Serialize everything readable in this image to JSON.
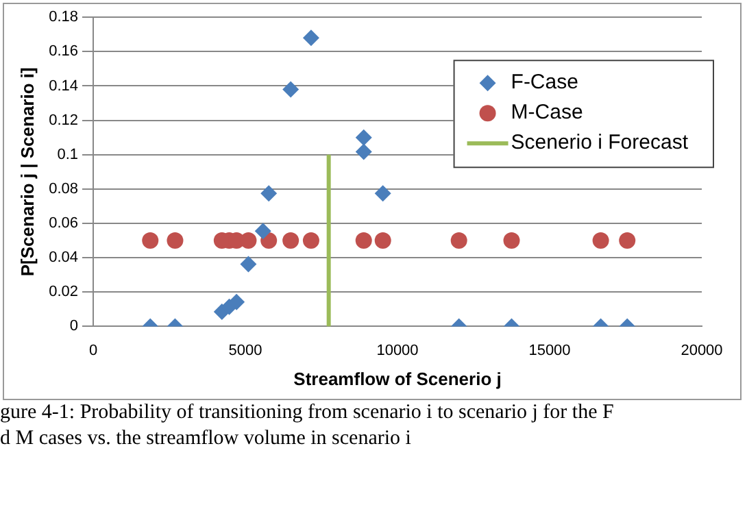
{
  "chart_data": {
    "type": "scatter",
    "xlabel": "Streamflow of Scenerio j",
    "ylabel": "P[Scenario j | Scenario i]",
    "x": [
      1875,
      2690,
      4230,
      4470,
      4710,
      5100,
      5580,
      5770,
      6490,
      7160,
      8890,
      8890,
      9520,
      12020,
      13750,
      16680,
      17550
    ],
    "series": [
      {
        "name": "F-Case",
        "color": "#4a7ebb",
        "marker": "diamond",
        "values": [
          0,
          0,
          0.0085,
          0.0114,
          0.0142,
          0.0363,
          0.0555,
          0.0775,
          0.138,
          0.168,
          0.1017,
          0.11,
          0.0775,
          0,
          0,
          0,
          0
        ]
      },
      {
        "name": "M-Case",
        "color": "#c0504d",
        "marker": "circle",
        "values": [
          0.05,
          0.05,
          0.05,
          0.05,
          0.05,
          0.05,
          null,
          0.05,
          0.05,
          0.05,
          0.05,
          null,
          0.05,
          0.05,
          0.05,
          0.05,
          0.05
        ]
      },
      {
        "name": "Scenerio i Forecast",
        "type": "line",
        "color": "#9bbb59",
        "marker": "none",
        "x": [
          7740,
          7740
        ],
        "values": [
          0,
          0.1
        ]
      }
    ],
    "xlim": [
      0,
      20000
    ],
    "xticks": [
      0,
      5000,
      10000,
      15000,
      20000
    ],
    "ylim": [
      0,
      0.18
    ],
    "yticks": [
      0,
      0.02,
      0.04,
      0.06,
      0.08,
      0.1,
      0.12,
      0.14,
      0.16,
      0.18
    ],
    "grid": "y",
    "legend": "top right",
    "annotations": [
      "gure 4-1: Probability of transitioning from scenario i to scenario j for the F",
      "d M cases vs. the streamflow volume in scenario i"
    ]
  }
}
